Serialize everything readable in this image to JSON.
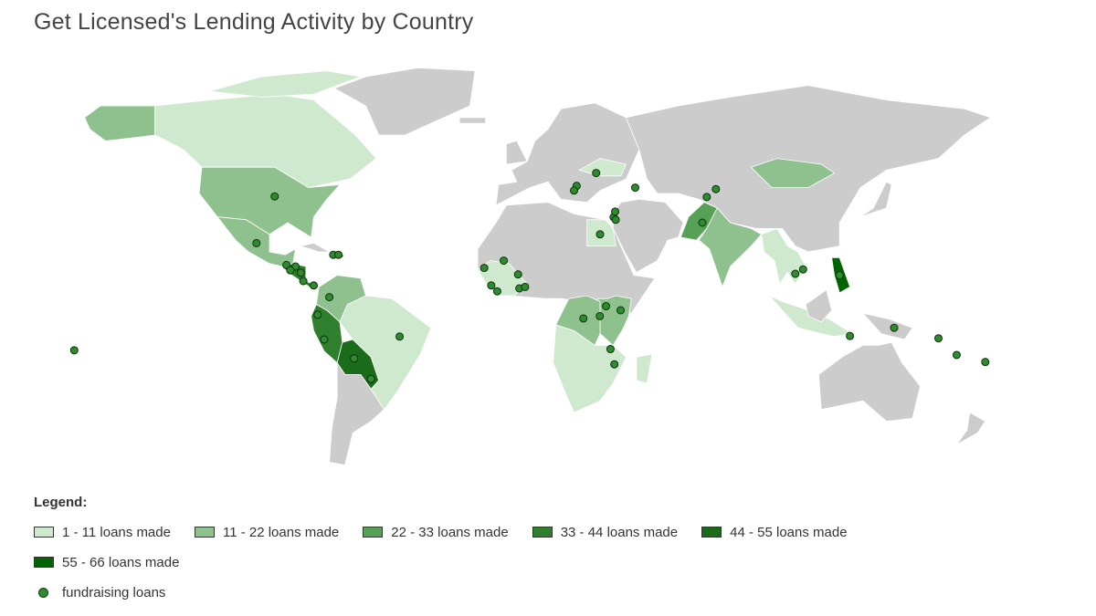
{
  "title": "Get Licensed's Lending Activity by Country",
  "colors": {
    "no_activity": "#cccccc",
    "tier1": "#cfe9cf",
    "tier2": "#8fc18f",
    "tier3": "#57a157",
    "tier4": "#2f7f2f",
    "tier5": "#1a6b1a",
    "tier6": "#006400",
    "fundraising_dot": "#2e8b2e"
  },
  "legend": {
    "heading": "Legend:",
    "items": [
      {
        "label": "1 - 11 loans made",
        "color": "#cfe9cf"
      },
      {
        "label": "11 - 22 loans made",
        "color": "#8fc18f"
      },
      {
        "label": "22 - 33 loans made",
        "color": "#57a157"
      },
      {
        "label": "33 - 44 loans made",
        "color": "#2f7f2f"
      },
      {
        "label": "44 - 55 loans made",
        "color": "#1a6b1a"
      },
      {
        "label": "55 - 66 loans made",
        "color": "#006400"
      }
    ],
    "fundraising_label": "fundraising loans"
  },
  "fundraising_locations": [
    {
      "name": "United States",
      "lon": -95,
      "lat": 39
    },
    {
      "name": "Mexico",
      "lon": -102,
      "lat": 23
    },
    {
      "name": "Guatemala",
      "lon": -90.5,
      "lat": 15.5
    },
    {
      "name": "Honduras",
      "lon": -87,
      "lat": 15
    },
    {
      "name": "El Salvador",
      "lon": -89,
      "lat": 13.7
    },
    {
      "name": "Nicaragua",
      "lon": -85,
      "lat": 12.9
    },
    {
      "name": "Costa Rica",
      "lon": -84,
      "lat": 10
    },
    {
      "name": "Panama",
      "lon": -80,
      "lat": 8.5
    },
    {
      "name": "Haiti",
      "lon": -72.5,
      "lat": 19
    },
    {
      "name": "Dominican Republic",
      "lon": -70.5,
      "lat": 19
    },
    {
      "name": "Colombia",
      "lon": -74,
      "lat": 4.5
    },
    {
      "name": "Ecuador",
      "lon": -78.5,
      "lat": -1.5
    },
    {
      "name": "Peru",
      "lon": -76,
      "lat": -10
    },
    {
      "name": "Brazil",
      "lon": -47,
      "lat": -9
    },
    {
      "name": "Bolivia",
      "lon": -64.5,
      "lat": -16.5
    },
    {
      "name": "Paraguay",
      "lon": -58,
      "lat": -23.5
    },
    {
      "name": "Senegal",
      "lon": -14.5,
      "lat": 14.5
    },
    {
      "name": "Sierra Leone",
      "lon": -11.8,
      "lat": 8.5
    },
    {
      "name": "Liberia",
      "lon": -9.5,
      "lat": 6.5
    },
    {
      "name": "Mali",
      "lon": -7,
      "lat": 17
    },
    {
      "name": "Burkina Faso",
      "lon": -1.5,
      "lat": 12.3
    },
    {
      "name": "Ghana",
      "lon": -1,
      "lat": 7.5
    },
    {
      "name": "Togo",
      "lon": 1.2,
      "lat": 8
    },
    {
      "name": "Egypt",
      "lon": 30,
      "lat": 26
    },
    {
      "name": "Palestine",
      "lon": 35.2,
      "lat": 31.9
    },
    {
      "name": "Jordan",
      "lon": 36,
      "lat": 31
    },
    {
      "name": "Lebanon",
      "lon": 35.8,
      "lat": 33.8
    },
    {
      "name": "Moldova",
      "lon": 28.5,
      "lat": 47
    },
    {
      "name": "Kosovo",
      "lon": 21,
      "lat": 42.6
    },
    {
      "name": "Albania",
      "lon": 20,
      "lat": 41
    },
    {
      "name": "Georgia",
      "lon": 43.5,
      "lat": 42
    },
    {
      "name": "Tajikistan",
      "lon": 71,
      "lat": 38.8
    },
    {
      "name": "Kyrgyzstan",
      "lon": 74.5,
      "lat": 41.5
    },
    {
      "name": "Pakistan",
      "lon": 69.3,
      "lat": 30
    },
    {
      "name": "Congo (DRC)",
      "lon": 23.6,
      "lat": -2.8
    },
    {
      "name": "Rwanda",
      "lon": 29.9,
      "lat": -2
    },
    {
      "name": "Uganda",
      "lon": 32.3,
      "lat": 1.4
    },
    {
      "name": "Kenya",
      "lon": 37.9,
      "lat": 0
    },
    {
      "name": "Malawi",
      "lon": 34,
      "lat": -13.3
    },
    {
      "name": "Mozambique",
      "lon": 35.5,
      "lat": -18.5
    },
    {
      "name": "Cambodia",
      "lon": 105,
      "lat": 12.5
    },
    {
      "name": "Vietnam",
      "lon": 108,
      "lat": 14
    },
    {
      "name": "Philippines",
      "lon": 122,
      "lat": 12
    },
    {
      "name": "Indonesia (Timor)",
      "lon": 126,
      "lat": -8.8
    },
    {
      "name": "Papua New Guinea",
      "lon": 143,
      "lat": -6
    },
    {
      "name": "Solomon Islands",
      "lon": 160,
      "lat": -9.6
    },
    {
      "name": "Vanuatu",
      "lon": 167,
      "lat": -15.3
    },
    {
      "name": "Fiji",
      "lon": 178,
      "lat": -17.7
    },
    {
      "name": "Samoa",
      "lon": -172,
      "lat": -13.7
    }
  ]
}
